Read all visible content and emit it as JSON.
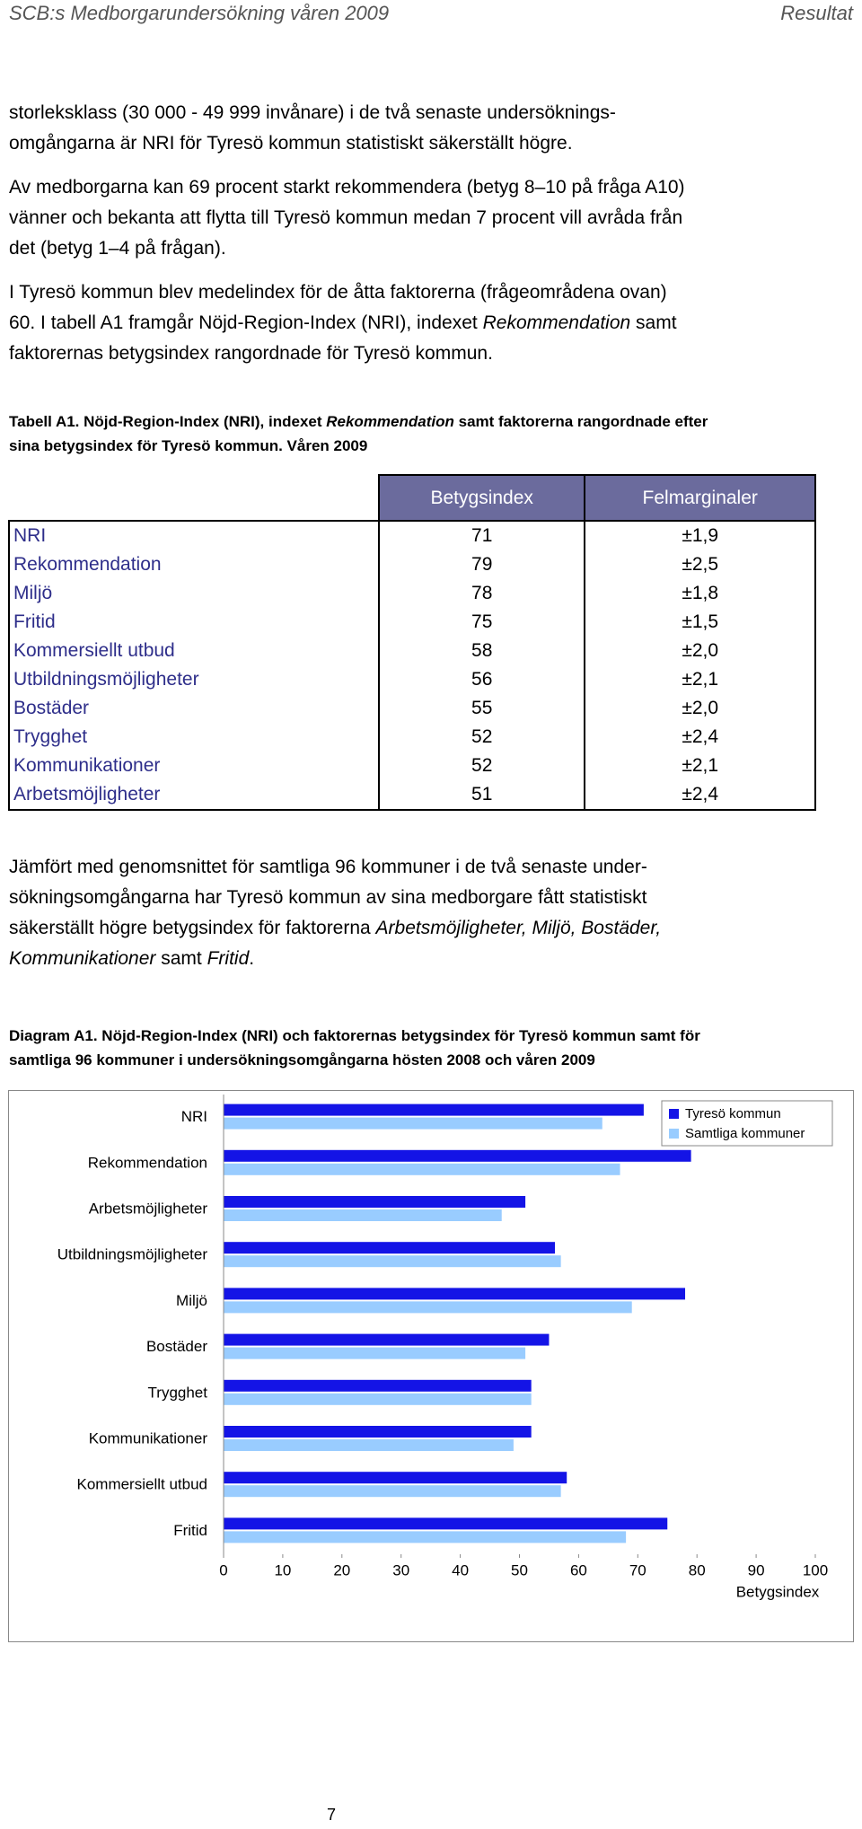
{
  "header": {
    "left": "SCB:s Medborgarundersökning våren 2009",
    "right": "Resultat"
  },
  "paragraphs": [
    [
      [
        "storleksklass (30 000 - 49 999 invånare) i de två senaste undersöknings-"
      ],
      [
        "omgångarna är NRI för Tyresö kommun statistiskt säkerställt högre."
      ]
    ],
    [
      [
        "Av medborgarna kan 69 procent starkt rekommendera (betyg 8–10 på fråga A10)"
      ],
      [
        "vänner och bekanta att flytta till Tyresö kommun medan 7 procent vill avråda från"
      ],
      [
        "det (betyg 1–4 på frågan)."
      ]
    ],
    [
      [
        "I Tyresö kommun blev medelindex för de åtta faktorerna (frågeområdena ovan)"
      ],
      [
        "60. I tabell A1 framgår Nöjd-Region-Index (NRI), indexet ",
        {
          "t": "Rekommendation",
          "i": true
        },
        " samt"
      ],
      [
        "faktorernas betygsindex rangordnade för Tyresö kommun."
      ]
    ],
    [
      [
        "Jämfört med genomsnittet för samtliga 96 kommuner i de två senaste under-"
      ],
      [
        "sökningsomgångarna har Tyresö kommun av sina medborgare fått statistiskt"
      ],
      [
        "säkerställt högre betygsindex för faktorerna ",
        {
          "t": "Arbetsmöjligheter, Miljö, Bostäder,",
          "i": true
        }
      ],
      [
        {
          "t": "Kommunikationer",
          "i": true
        },
        " samt ",
        {
          "t": "Fritid",
          "i": true
        },
        "."
      ]
    ]
  ],
  "table_caption": [
    [
      "Tabell A1. Nöjd-Region-Index (NRI), indexet ",
      {
        "t": "Rekommendation",
        "i": true
      },
      " samt faktorerna rangordnade efter"
    ],
    [
      "sina betygsindex för Tyresö kommun. Våren 2009"
    ]
  ],
  "table": {
    "columns": [
      "Betygsindex",
      "Felmarginaler"
    ],
    "rows": [
      [
        "NRI",
        71,
        "±1,9"
      ],
      [
        "Rekommendation",
        79,
        "±2,5"
      ],
      [
        "Miljö",
        78,
        "±1,8"
      ],
      [
        "Fritid",
        75,
        "±1,5"
      ],
      [
        "Kommersiellt utbud",
        58,
        "±2,0"
      ],
      [
        "Utbildningsmöjligheter",
        56,
        "±2,1"
      ],
      [
        "Bostäder",
        55,
        "±2,0"
      ],
      [
        "Trygghet",
        52,
        "±2,4"
      ],
      [
        "Kommunikationer",
        52,
        "±2,1"
      ],
      [
        "Arbetsmöjligheter",
        51,
        "±2,4"
      ]
    ]
  },
  "chart_caption": [
    [
      "Diagram A1. Nöjd-Region-Index (NRI) och faktorernas betygsindex för Tyresö kommun samt för"
    ],
    [
      "samtliga 96 kommuner i undersökningsomgångarna hösten 2008 och våren 2009"
    ]
  ],
  "chart_data": {
    "type": "barh",
    "xlabel": "Betygsindex",
    "categories": [
      "NRI",
      "Rekommendation",
      "Arbetsmöjligheter",
      "Utbildningsmöjligheter",
      "Miljö",
      "Bostäder",
      "Trygghet",
      "Kommunikationer",
      "Kommersiellt utbud",
      "Fritid"
    ],
    "series": [
      {
        "name": "Tyresö kommun",
        "color": "#1414e6",
        "values": [
          71,
          79,
          51,
          56,
          78,
          55,
          52,
          52,
          58,
          75
        ]
      },
      {
        "name": "Samtliga kommuner",
        "color": "#99ccff",
        "values": [
          64,
          67,
          47,
          57,
          69,
          51,
          52,
          49,
          57,
          68
        ]
      }
    ],
    "xlim": [
      0,
      100
    ],
    "xticks": [
      0,
      10,
      20,
      30,
      40,
      50,
      60,
      70,
      80,
      90,
      100
    ],
    "legend": "upper right"
  },
  "page_number": 7
}
